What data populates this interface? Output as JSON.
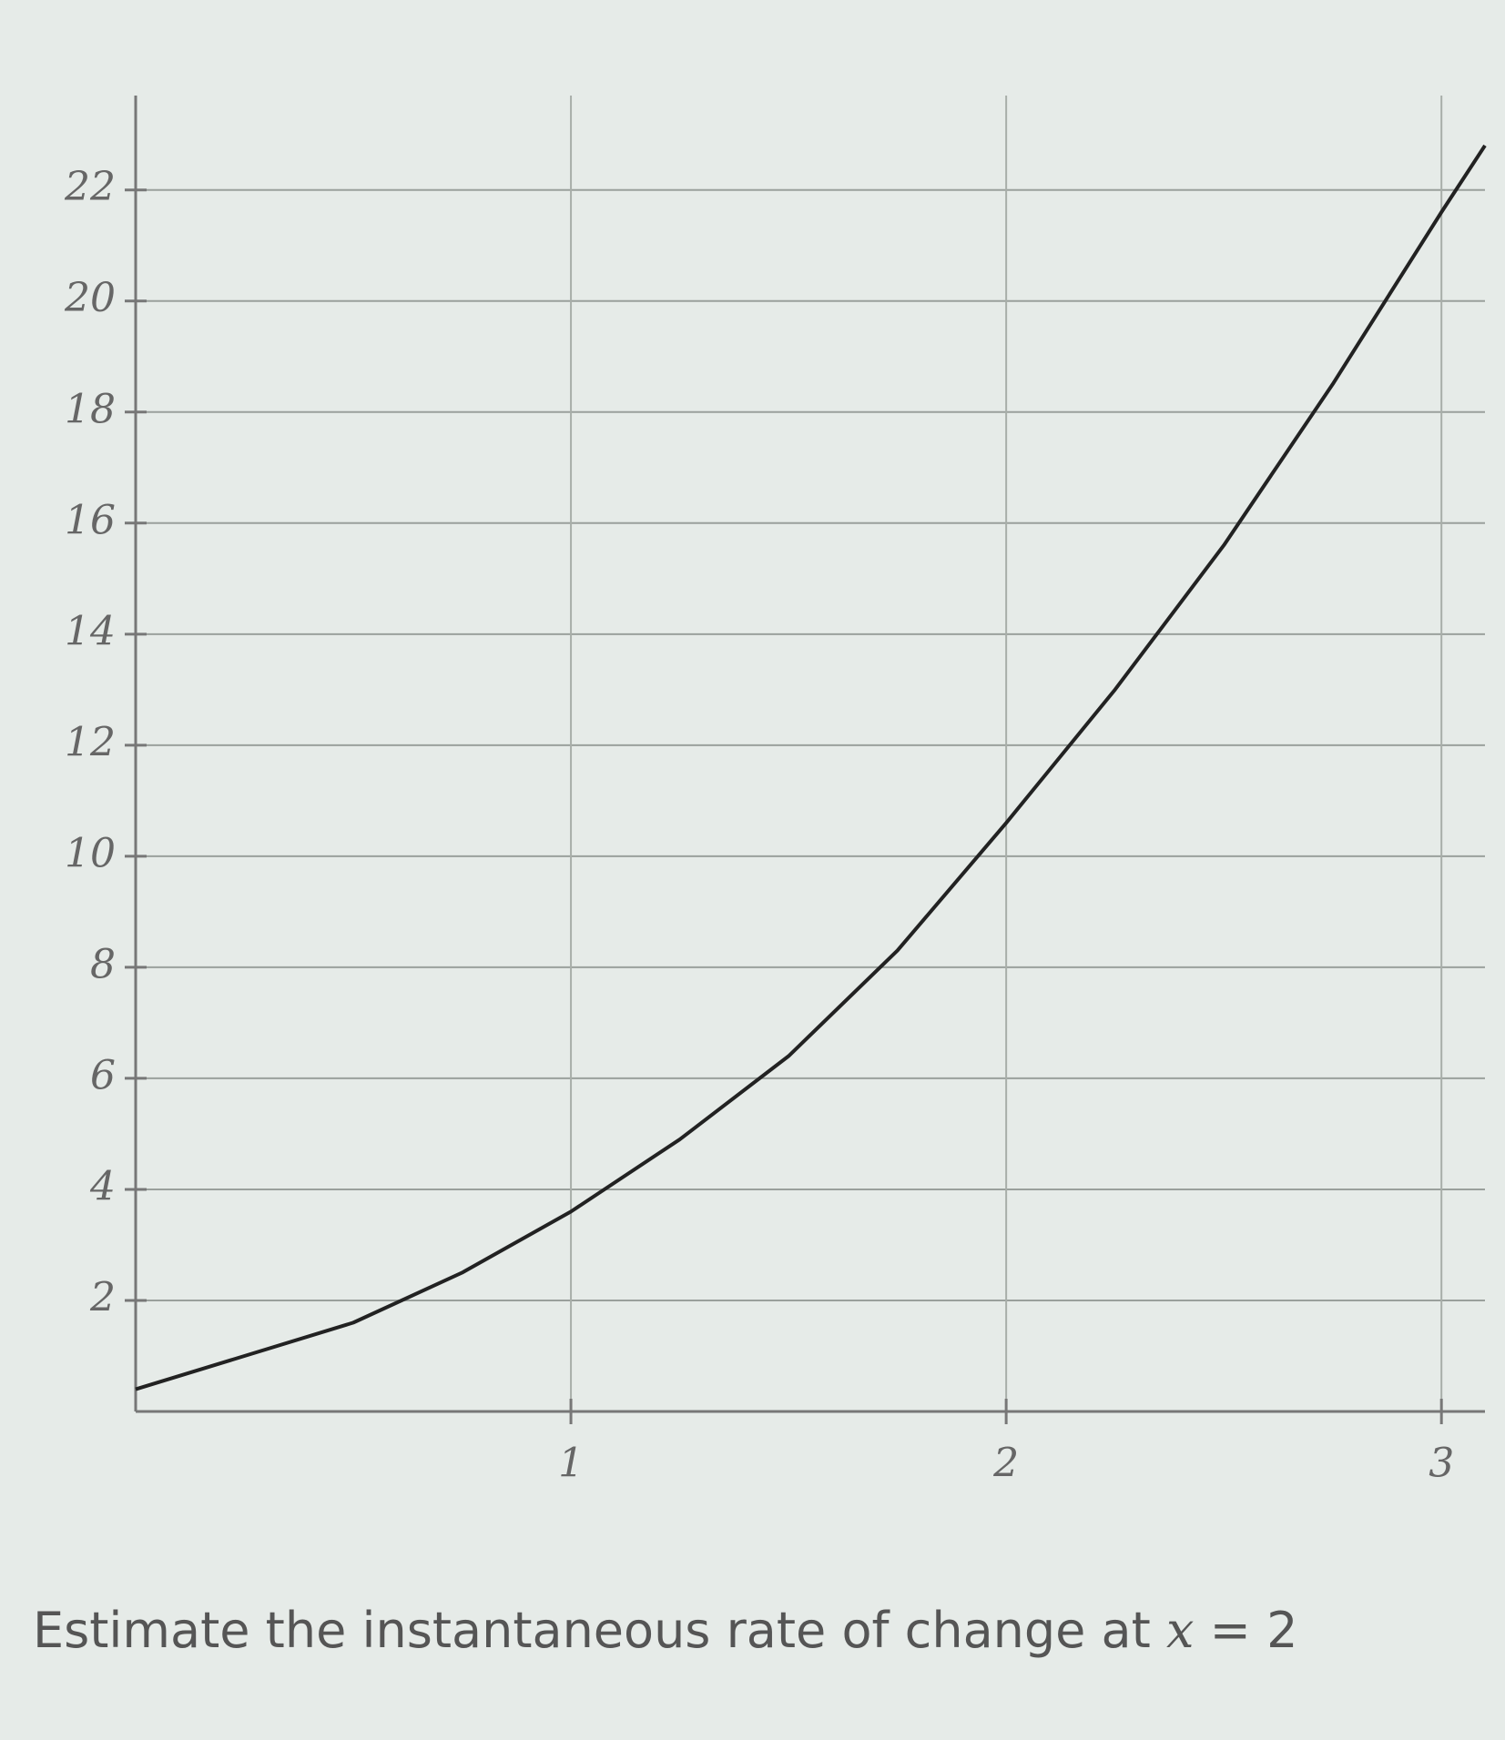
{
  "chart_data": {
    "type": "line",
    "x": [
      0,
      0.25,
      0.5,
      0.75,
      1,
      1.25,
      1.5,
      1.75,
      2,
      2.25,
      2.5,
      2.75,
      3,
      3.1
    ],
    "series": [
      {
        "color": "#222222",
        "values": [
          0.4,
          1.0,
          1.6,
          2.5,
          3.6,
          4.9,
          6.4,
          8.3,
          10.6,
          13.0,
          15.6,
          18.5,
          21.6,
          22.8
        ]
      }
    ],
    "xlim": [
      0,
      3.1
    ],
    "ylim": [
      0,
      23.7
    ],
    "xticks": [
      1,
      2,
      3
    ],
    "yticks": [
      2,
      4,
      6,
      8,
      10,
      12,
      14,
      16,
      18,
      20,
      22
    ],
    "grid": true
  },
  "question": {
    "text": "Estimate the instantaneous rate of change at",
    "variable": "x",
    "operator": "=",
    "value": "2"
  }
}
